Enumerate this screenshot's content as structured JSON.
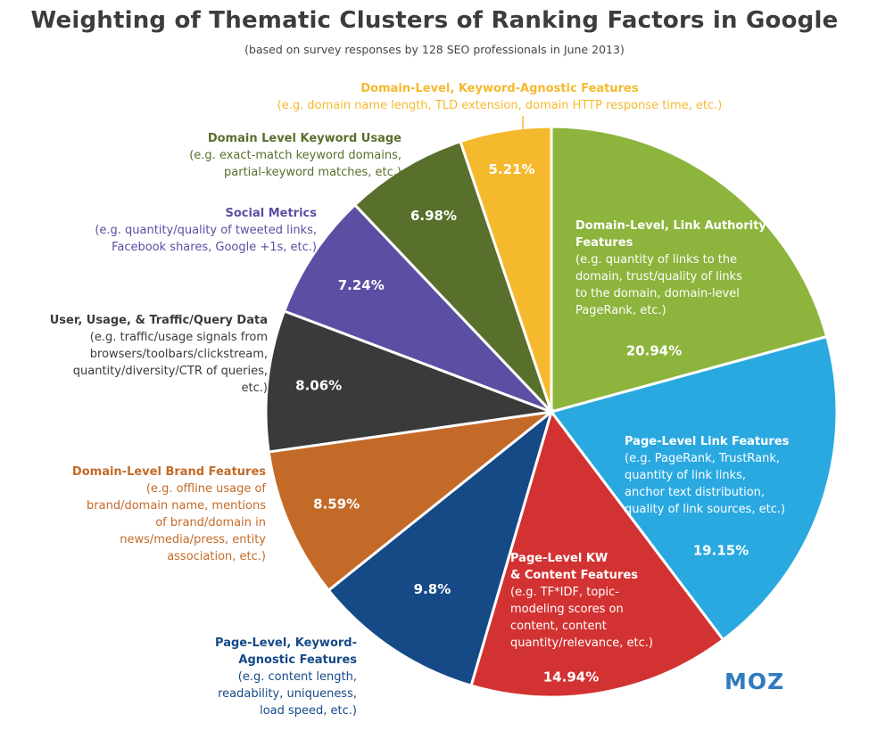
{
  "title": "Weighting of Thematic Clusters of Ranking Factors in Google",
  "subtitle": "(based on survey responses by 128 SEO professionals in June 2013)",
  "logo": "MOZ",
  "chart_data": {
    "type": "pie",
    "start_direction": "clockwise-from-top",
    "slices": [
      {
        "name": "Domain-Level, Link Authority Features",
        "value": 20.94,
        "label": "20.94%",
        "color": "#8db43d",
        "description": [
          "(e.g. quantity of links to the",
          "domain, trust/quality of links",
          "to the domain, domain-level",
          "PageRank, etc.)"
        ]
      },
      {
        "name": "Page-Level Link Features",
        "value": 19.15,
        "label": "19.15%",
        "color": "#2aa9e1",
        "description": [
          "(e.g. PageRank, TrustRank,",
          "quantity of link links,",
          "anchor text distribution,",
          "quality of link sources, etc.)"
        ]
      },
      {
        "name_lines": [
          "Page-Level KW",
          "& Content Features"
        ],
        "value": 14.94,
        "label": "14.94%",
        "color": "#d33232",
        "description": [
          "(e.g. TF*IDF, topic-",
          "modeling scores on",
          "content, content",
          "quantity/relevance, etc.)"
        ]
      },
      {
        "name_lines": [
          "Page-Level, Keyword-",
          "Agnostic Features"
        ],
        "value": 9.8,
        "label": "9.8%",
        "color": "#154a86",
        "description": [
          "(e.g. content length,",
          "readability, uniqueness,",
          "load speed, etc.)"
        ]
      },
      {
        "name": "Domain-Level Brand Features",
        "value": 8.59,
        "label": "8.59%",
        "color": "#c46a28",
        "description": [
          "(e.g. offline usage of",
          "brand/domain name, mentions",
          "of brand/domain in",
          "news/media/press, entity",
          "association, etc.)"
        ]
      },
      {
        "name": "User, Usage, & Traffic/Query Data",
        "value": 8.06,
        "label": "8.06%",
        "color": "#3a3a3a",
        "description": [
          "(e.g. traffic/usage signals from",
          "browsers/toolbars/clickstream,",
          "quantity/diversity/CTR of queries,",
          "etc.)"
        ]
      },
      {
        "name": "Social Metrics",
        "value": 7.24,
        "label": "7.24%",
        "color": "#5a4fa2",
        "description": [
          "(e.g. quantity/quality of tweeted links,",
          "Facebook shares, Google +1s, etc.)"
        ]
      },
      {
        "name": "Domain Level Keyword Usage",
        "value": 6.98,
        "label": "6.98%",
        "color": "#596f2c",
        "description": [
          "(e.g. exact-match keyword domains,",
          "partial-keyword matches, etc.)"
        ]
      },
      {
        "name": "Domain-Level, Keyword-Agnostic Features",
        "value": 5.21,
        "label": "5.21%",
        "color": "#f5b92e",
        "description": [
          "(e.g. domain name length, TLD extension, domain HTTP response time, etc.)"
        ]
      }
    ]
  }
}
